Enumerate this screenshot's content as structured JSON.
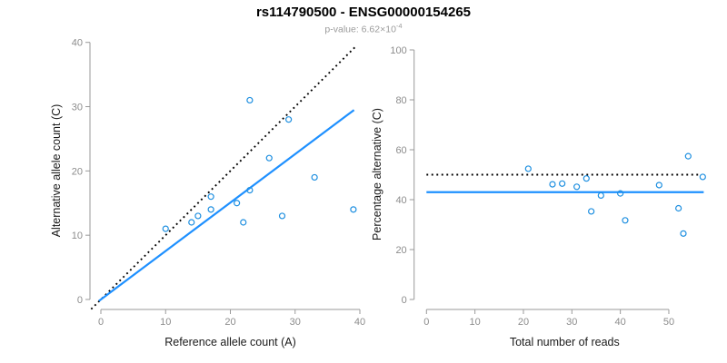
{
  "header": {
    "title": "rs114790500 - ENSG00000154265",
    "p_value_label": "p-value: ",
    "p_value_mantissa": "6.62×10",
    "p_value_exponent": "-4"
  },
  "colors": {
    "accent_blue": "#1E90FF",
    "point_blue": "#1E8FE0",
    "identity_black": "#000000",
    "axis_gray": "#9a9a9a",
    "tick_label_gray": "#8c8c8c",
    "axis_title_color": "#1a1a1a",
    "subtitle_gray": "#9b9b9b"
  },
  "chart_data": [
    {
      "type": "scatter",
      "panel": "left",
      "xlabel": "Reference allele count (A)",
      "ylabel": "Alternative allele count (C)",
      "xlim": [
        0,
        40
      ],
      "ylim": [
        0,
        40
      ],
      "xticks": [
        0,
        10,
        20,
        30,
        40
      ],
      "yticks": [
        0,
        10,
        20,
        30,
        40
      ],
      "grid": false,
      "points": [
        [
          10,
          11
        ],
        [
          14,
          12
        ],
        [
          15,
          13
        ],
        [
          17,
          14
        ],
        [
          17,
          16
        ],
        [
          21,
          15
        ],
        [
          22,
          12
        ],
        [
          23,
          17
        ],
        [
          23,
          31
        ],
        [
          26,
          22
        ],
        [
          28,
          13
        ],
        [
          29,
          28
        ],
        [
          33,
          19
        ],
        [
          39,
          14
        ]
      ],
      "lines": [
        {
          "name": "identity-line",
          "slope": 1,
          "intercept": 0,
          "x_start": -1.5,
          "x_end": 39.4,
          "style": "dotted",
          "color": "#000000"
        },
        {
          "name": "fit-line",
          "slope": 0.754,
          "intercept": 0,
          "x_start": -0.3,
          "x_end": 39.1,
          "style": "solid",
          "color": "#1E90FF"
        }
      ]
    },
    {
      "type": "scatter",
      "panel": "right",
      "xlabel": "Total number of reads",
      "ylabel": "Percentage alternative (C)",
      "xlim": [
        0,
        60
      ],
      "ylim": [
        0,
        100
      ],
      "xticks": [
        0,
        10,
        20,
        30,
        40,
        50
      ],
      "yticks": [
        0,
        20,
        40,
        60,
        80,
        100
      ],
      "grid": false,
      "points": [
        [
          21,
          52.38
        ],
        [
          26,
          46.15
        ],
        [
          28,
          46.43
        ],
        [
          31,
          45.16
        ],
        [
          33,
          48.48
        ],
        [
          34,
          35.29
        ],
        [
          36,
          41.67
        ],
        [
          40,
          42.5
        ],
        [
          41,
          31.71
        ],
        [
          48,
          45.83
        ],
        [
          52,
          36.54
        ],
        [
          53,
          26.42
        ],
        [
          54,
          57.41
        ],
        [
          57,
          49.12
        ]
      ],
      "lines": [
        {
          "name": "null-line",
          "slope": 0,
          "intercept": 50,
          "x_start": 0,
          "x_end": 56.3,
          "style": "dotted",
          "color": "#000000"
        },
        {
          "name": "mean-line",
          "slope": 0,
          "intercept": 43,
          "x_start": 0,
          "x_end": 57.2,
          "style": "solid",
          "color": "#1E90FF"
        }
      ]
    }
  ]
}
